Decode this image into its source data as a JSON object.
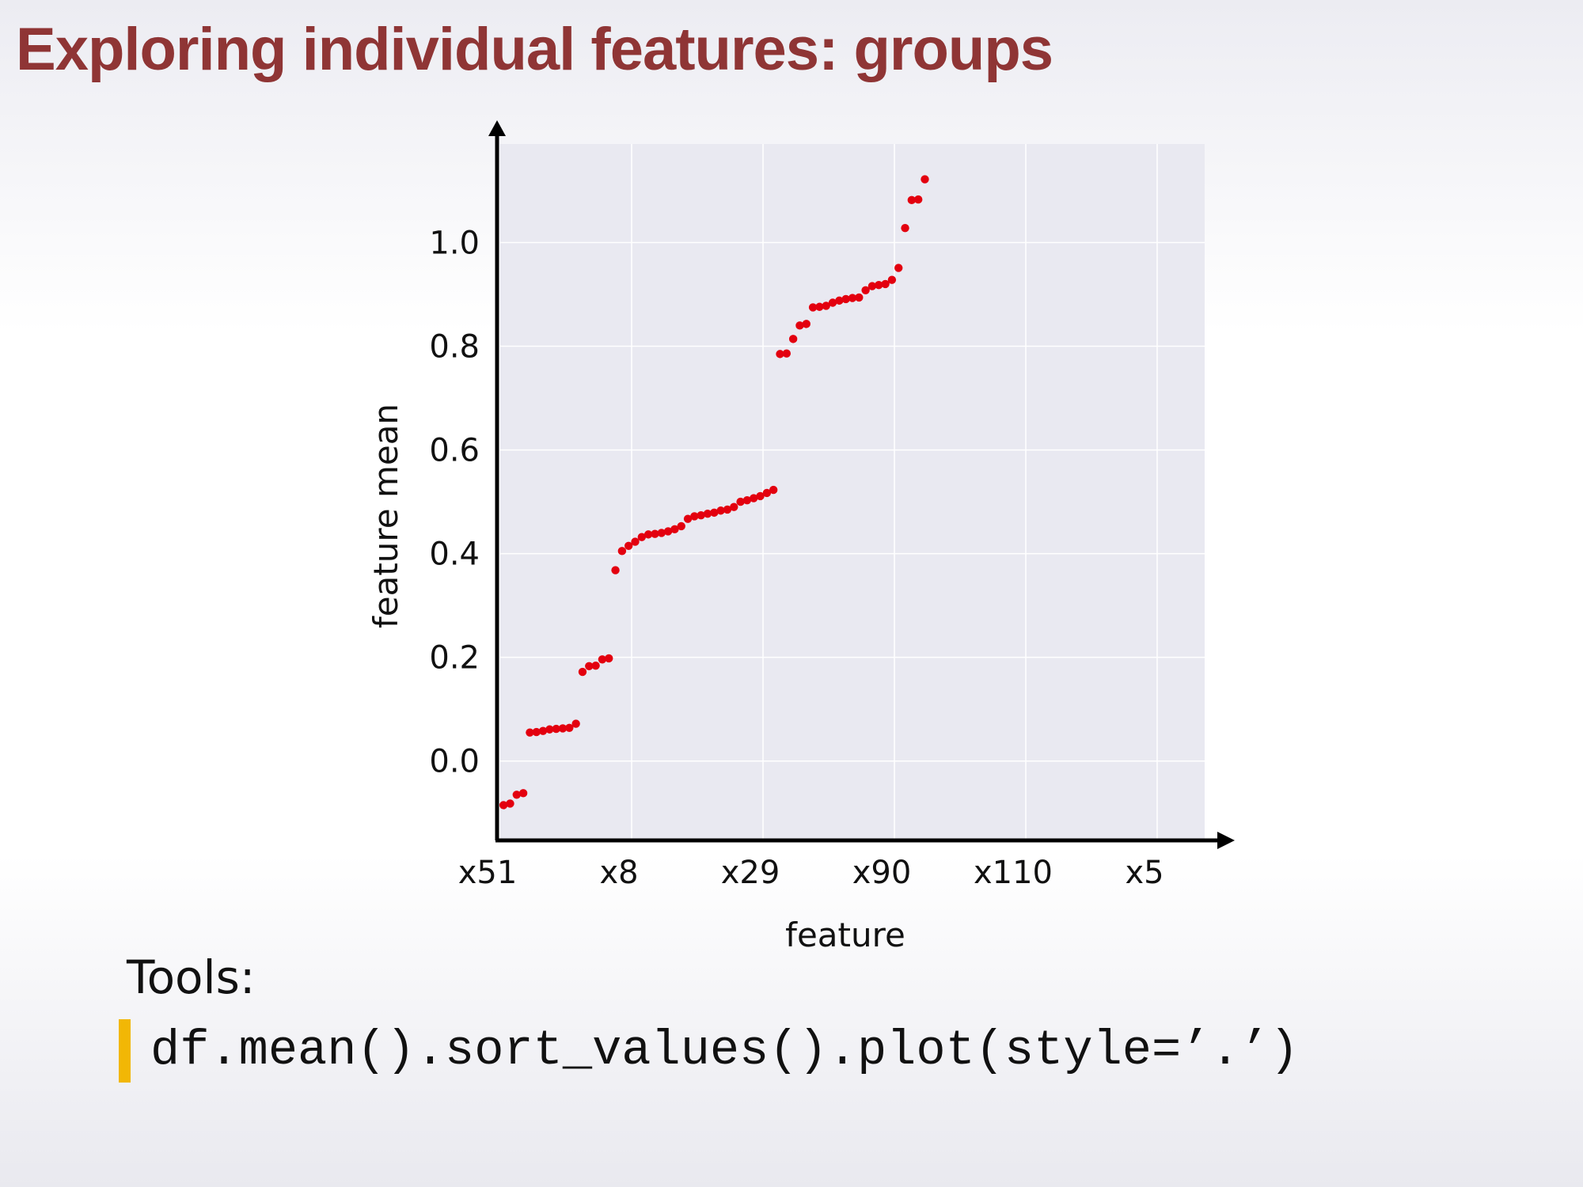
{
  "slide": {
    "title": "Exploring individual features: groups"
  },
  "chart_data": {
    "type": "scatter",
    "xlabel": "feature",
    "ylabel": "feature mean",
    "categories": [
      "x51",
      "x8",
      "x29",
      "x90",
      "x110",
      "x5"
    ],
    "x_tick_labels": [
      "x51",
      "x8",
      "x29",
      "x90",
      "x110",
      "x5"
    ],
    "y_ticks": [
      0.0,
      0.2,
      0.4,
      0.6,
      0.8,
      1.0
    ],
    "y_tick_labels": [
      "0.0",
      "0.2",
      "0.4",
      "0.6",
      "0.8",
      "1.0"
    ],
    "xlim": [
      0,
      107
    ],
    "ylim": [
      -0.15,
      1.19
    ],
    "grid": true,
    "legend": false,
    "marker_color": "#e3000f",
    "plot_background": "#e9e9f1",
    "series": [
      {
        "values": [
          -0.085,
          -0.082,
          -0.065,
          -0.062,
          0.055,
          0.056,
          0.058,
          0.061,
          0.062,
          0.063,
          0.064,
          0.072,
          0.172,
          0.183,
          0.184,
          0.196,
          0.198,
          0.368,
          0.405,
          0.415,
          0.423,
          0.432,
          0.437,
          0.438,
          0.44,
          0.443,
          0.447,
          0.453,
          0.467,
          0.472,
          0.474,
          0.477,
          0.479,
          0.483,
          0.485,
          0.49,
          0.5,
          0.503,
          0.507,
          0.511,
          0.517,
          0.523,
          0.785,
          0.786,
          0.814,
          0.84,
          0.843,
          0.875,
          0.876,
          0.878,
          0.884,
          0.888,
          0.891,
          0.893,
          0.894,
          0.908,
          0.916,
          0.918,
          0.92,
          0.928,
          0.951,
          1.028,
          1.082,
          1.083,
          1.122
        ]
      }
    ]
  },
  "tools": {
    "label": "Tools:",
    "code": "df.mean().sort_values().plot(style=’.’)"
  }
}
